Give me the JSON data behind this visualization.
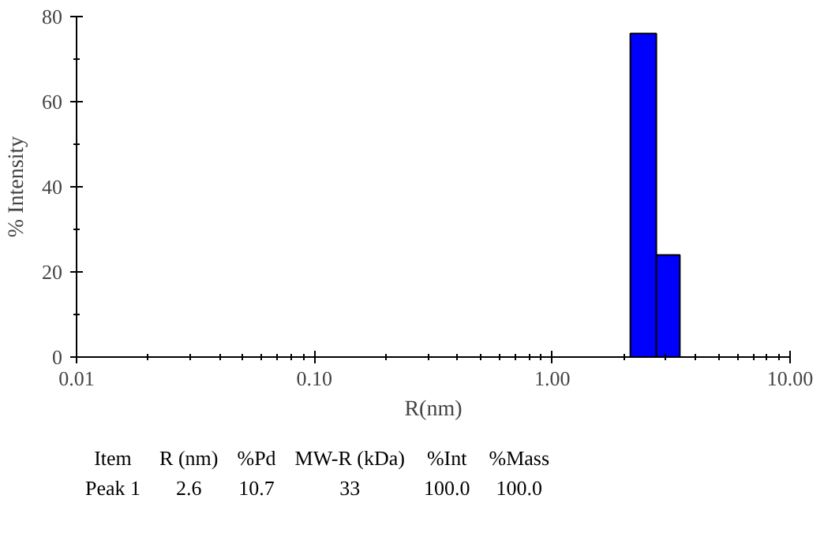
{
  "chart_data": {
    "type": "histogram",
    "xlabel": "R(nm)",
    "ylabel": "% Intensity",
    "bins": [
      2.13,
      2.74,
      3.44
    ],
    "values": [
      76,
      24
    ],
    "color": "#0000ff",
    "log": "x",
    "xlim": [
      0.01,
      10
    ],
    "xticks": [
      {
        "value": 0.01,
        "label": "0.01"
      },
      {
        "value": 0.1,
        "label": "0.10"
      },
      {
        "value": 1,
        "label": "1.00"
      },
      {
        "value": 10,
        "label": "10.00"
      }
    ],
    "ylim": [
      0,
      80
    ],
    "yticks": [
      0,
      20,
      40,
      60,
      80
    ],
    "grid": false,
    "annotations": [
      "Item",
      "R (nm)",
      "%Pd",
      "MW-R (kDa)",
      "%Int",
      "%Mass",
      "Peak 1",
      "2.6",
      "10.7",
      "33",
      "100.0",
      "100.0"
    ]
  }
}
